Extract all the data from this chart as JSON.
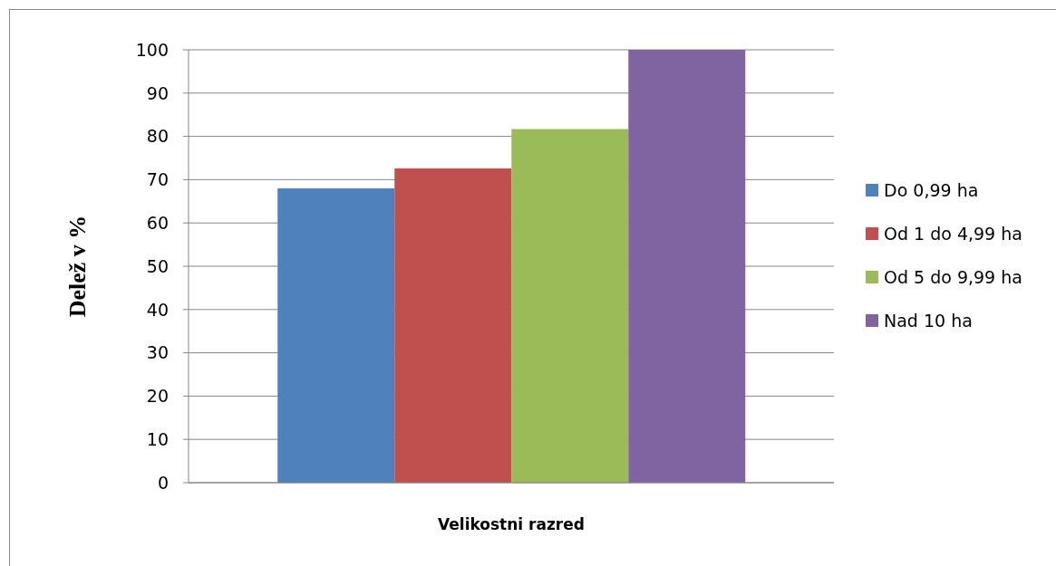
{
  "chart_data": {
    "type": "bar",
    "xlabel": "Velikostni razred",
    "ylabel": "Delež v %",
    "categories": [
      null
    ],
    "series": [
      {
        "name": "Do 0,99 ha",
        "color": "#4f81bd",
        "values": [
          68
        ]
      },
      {
        "name": "Od 1 do 4,99 ha",
        "color": "#c0504d",
        "values": [
          72.6
        ]
      },
      {
        "name": "Od 5 do 9,99 ha",
        "color": "#9bbb59",
        "values": [
          81.7
        ]
      },
      {
        "name": "Nad 10 ha",
        "color": "#8064a2",
        "values": [
          100
        ]
      }
    ],
    "ylim": [
      0,
      100
    ],
    "yticks": [
      0,
      10,
      20,
      30,
      40,
      50,
      60,
      70,
      80,
      90,
      100
    ],
    "grid": "y",
    "legend": "right"
  }
}
